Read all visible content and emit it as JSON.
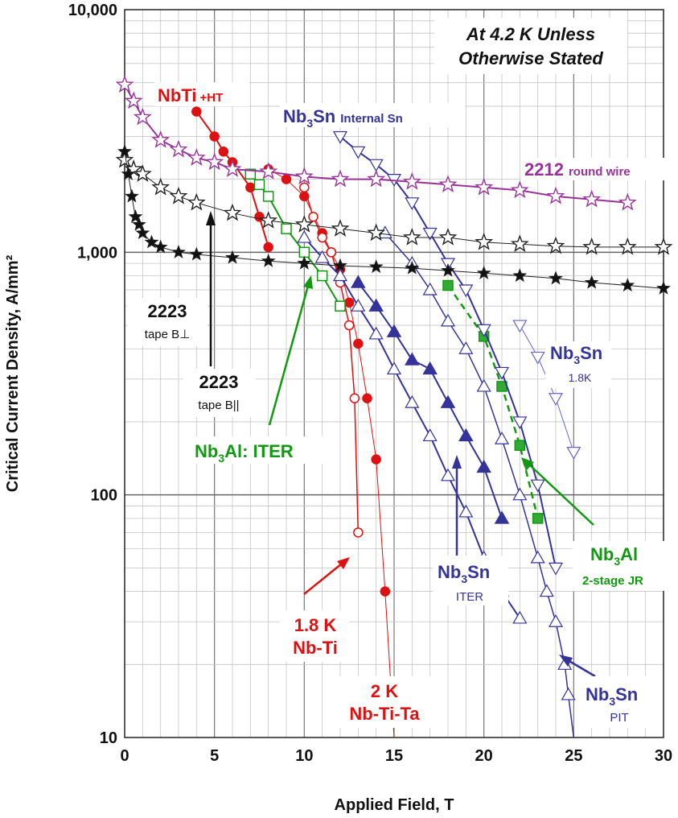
{
  "chart_data": {
    "type": "line",
    "title_line1": "At 4.2 K Unless",
    "title_line2": "Otherwise Stated",
    "xlabel": "Applied Field, T",
    "ylabel": "Critical Current Density, A/mm²",
    "xlim": [
      0,
      30
    ],
    "ylim": [
      10,
      10000
    ],
    "yscale": "log",
    "grid": true,
    "x_ticks": [
      {
        "v": 0,
        "label": "0"
      },
      {
        "v": 5,
        "label": "5"
      },
      {
        "v": 10,
        "label": "10"
      },
      {
        "v": 15,
        "label": "15"
      },
      {
        "v": 20,
        "label": "20"
      },
      {
        "v": 25,
        "label": "25"
      },
      {
        "v": 30,
        "label": "30"
      }
    ],
    "y_ticks": [
      {
        "v": 10,
        "label": "10"
      },
      {
        "v": 100,
        "label": "100"
      },
      {
        "v": 1000,
        "label": "1,000"
      },
      {
        "v": 10000,
        "label": "10,000"
      }
    ],
    "series": [
      {
        "name": "NbTi +HT",
        "color": "#dd1111",
        "marker": "circle",
        "fill": "#dd1111",
        "width": 2,
        "dash": "",
        "points": [
          [
            4,
            3800
          ],
          [
            5,
            3000
          ],
          [
            5.5,
            2600
          ],
          [
            6,
            2350
          ],
          [
            7,
            1850
          ],
          [
            7.5,
            1400
          ],
          [
            8,
            1050
          ]
        ]
      },
      {
        "name": "2 K Nb-Ti-Ta",
        "color": "#dd1111",
        "marker": "circle",
        "fill": "#dd1111",
        "width": 1,
        "dash": "",
        "points": [
          [
            8,
            2200
          ],
          [
            9,
            2000
          ],
          [
            10,
            1700
          ],
          [
            11,
            1200
          ],
          [
            11.5,
            1000
          ],
          [
            12,
            850
          ],
          [
            12.5,
            620
          ],
          [
            13,
            420
          ],
          [
            13.5,
            250
          ],
          [
            14,
            140
          ],
          [
            14.5,
            40
          ],
          [
            15,
            10
          ]
        ]
      },
      {
        "name": "1.8 K Nb-Ti",
        "color": "#dd1111",
        "marker": "circle",
        "fill": "#ffffff",
        "width": 1.5,
        "dash": "",
        "points": [
          [
            10,
            1850
          ],
          [
            10.5,
            1400
          ],
          [
            11,
            1150
          ],
          [
            11.5,
            1000
          ],
          [
            12,
            750
          ],
          [
            12.5,
            500
          ],
          [
            12.8,
            250
          ],
          [
            13,
            70
          ]
        ]
      },
      {
        "name": "Nb3Al: ITER",
        "color": "#119911",
        "marker": "square",
        "fill": "#ffffff",
        "width": 2,
        "dash": "",
        "points": [
          [
            7,
            2100
          ],
          [
            7.5,
            1900
          ],
          [
            8,
            1700
          ],
          [
            9,
            1250
          ],
          [
            10,
            1000
          ],
          [
            11,
            800
          ],
          [
            12,
            600
          ]
        ]
      },
      {
        "name": "Nb3Al 2-stage JR",
        "color": "#119911",
        "marker": "square",
        "fill": "#33aa33",
        "width": 2.5,
        "dash": "8,6",
        "points": [
          [
            18,
            730
          ],
          [
            20,
            450
          ],
          [
            21,
            280
          ],
          [
            22,
            160
          ],
          [
            23,
            80
          ]
        ]
      },
      {
        "name": "Nb3Sn Internal Sn",
        "color": "#333399",
        "marker": "triangle-down",
        "fill": "#ffffff",
        "width": 2,
        "dash": "",
        "points": [
          [
            12,
            3000
          ],
          [
            13,
            2600
          ],
          [
            14,
            2300
          ],
          [
            15,
            2000
          ],
          [
            16,
            1600
          ],
          [
            17,
            1200
          ],
          [
            18,
            900
          ],
          [
            19,
            700
          ],
          [
            20,
            480
          ],
          [
            21,
            320
          ],
          [
            22,
            200
          ],
          [
            23,
            110
          ],
          [
            24,
            50
          ]
        ]
      },
      {
        "name": "Nb3Sn ITER",
        "color": "#333399",
        "marker": "triangle",
        "fill": "#ffffff",
        "width": 2,
        "dash": "",
        "points": [
          [
            10,
            1150
          ],
          [
            11,
            950
          ],
          [
            12,
            800
          ],
          [
            13,
            600
          ],
          [
            14,
            460
          ],
          [
            15,
            330
          ],
          [
            16,
            240
          ],
          [
            17,
            175
          ],
          [
            18,
            120
          ],
          [
            19,
            85
          ],
          [
            20,
            55
          ],
          [
            21,
            40
          ],
          [
            22,
            31
          ]
        ]
      },
      {
        "name": "Nb3Sn ITER",
        "color": "#333399",
        "marker": "triangle-filled",
        "fill": "#333399",
        "width": 2,
        "dash": "",
        "points": [
          [
            13,
            750
          ],
          [
            14,
            600
          ],
          [
            15,
            470
          ],
          [
            16,
            360
          ],
          [
            17,
            330
          ],
          [
            18,
            240
          ],
          [
            19,
            175
          ],
          [
            20,
            130
          ],
          [
            21,
            80
          ]
        ]
      },
      {
        "name": "Nb3Sn PIT",
        "color": "#333399",
        "marker": "triangle",
        "fill": "#ffffff",
        "width": 1.5,
        "dash": "",
        "points": [
          [
            14.5,
            1200
          ],
          [
            16,
            900
          ],
          [
            17,
            700
          ],
          [
            18,
            520
          ],
          [
            19,
            400
          ],
          [
            20,
            280
          ],
          [
            21,
            170
          ],
          [
            22,
            100
          ],
          [
            23,
            55
          ],
          [
            23.5,
            40
          ],
          [
            24,
            30
          ],
          [
            24.5,
            20
          ],
          [
            24.7,
            15
          ],
          [
            25,
            10
          ]
        ]
      },
      {
        "name": "Nb3Sn 1.8K",
        "color": "#6666cc",
        "marker": "triangle-down",
        "fill": "#ffffff",
        "width": 1,
        "dash": "",
        "points": [
          [
            22,
            500
          ],
          [
            23,
            370
          ],
          [
            24,
            250
          ],
          [
            25,
            150
          ]
        ]
      },
      {
        "name": "2212 round wire",
        "color": "#993399",
        "marker": "star",
        "fill": "#ffffff",
        "width": 2,
        "dash": "",
        "points": [
          [
            0,
            4900
          ],
          [
            0.5,
            4200
          ],
          [
            1,
            3600
          ],
          [
            2,
            2900
          ],
          [
            3,
            2650
          ],
          [
            4,
            2450
          ],
          [
            5,
            2350
          ],
          [
            6,
            2200
          ],
          [
            8,
            2150
          ],
          [
            10,
            2050
          ],
          [
            12,
            2000
          ],
          [
            14,
            2000
          ],
          [
            16,
            1950
          ],
          [
            18,
            1900
          ],
          [
            20,
            1850
          ],
          [
            22,
            1800
          ],
          [
            24,
            1700
          ],
          [
            26,
            1650
          ],
          [
            28,
            1600
          ]
        ]
      },
      {
        "name": "2223 tape B||",
        "color": "#222222",
        "marker": "star",
        "fill": "#ffffff",
        "width": 1,
        "dash": "",
        "points": [
          [
            0,
            2400
          ],
          [
            0.5,
            2200
          ],
          [
            1,
            2100
          ],
          [
            2,
            1850
          ],
          [
            3,
            1700
          ],
          [
            4,
            1600
          ],
          [
            6,
            1450
          ],
          [
            8,
            1350
          ],
          [
            10,
            1300
          ],
          [
            12,
            1250
          ],
          [
            14,
            1200
          ],
          [
            16,
            1150
          ],
          [
            18,
            1150
          ],
          [
            20,
            1100
          ],
          [
            22,
            1080
          ],
          [
            24,
            1060
          ],
          [
            26,
            1050
          ],
          [
            28,
            1050
          ],
          [
            30,
            1050
          ]
        ]
      },
      {
        "name": "2223 tape B⊥",
        "color": "#222222",
        "marker": "star-filled",
        "fill": "#111111",
        "width": 1,
        "dash": "",
        "points": [
          [
            0,
            2600
          ],
          [
            0.2,
            2100
          ],
          [
            0.4,
            1700
          ],
          [
            0.6,
            1400
          ],
          [
            0.8,
            1300
          ],
          [
            1,
            1200
          ],
          [
            1.5,
            1100
          ],
          [
            2,
            1050
          ],
          [
            3,
            1000
          ],
          [
            4,
            980
          ],
          [
            6,
            950
          ],
          [
            8,
            920
          ],
          [
            10,
            900
          ],
          [
            12,
            880
          ],
          [
            14,
            870
          ],
          [
            16,
            860
          ],
          [
            18,
            840
          ],
          [
            20,
            820
          ],
          [
            22,
            800
          ],
          [
            24,
            780
          ],
          [
            26,
            750
          ],
          [
            28,
            730
          ],
          [
            30,
            710
          ]
        ]
      }
    ],
    "labels": {
      "nbti_ht_main": "NbTi",
      "nbti_ht_sub": "+HT",
      "nb3sn_internal_main": "Nb",
      "nb3sn_internal_sub3": "3",
      "nb3sn_internal_sn": "Sn",
      "nb3sn_internal_note": "Internal Sn",
      "bscco2212_main": "2212",
      "bscco2212_note": "round wire",
      "tape_perp_num": "2223",
      "tape_perp_note": "tape B⊥",
      "tape_par_num": "2223",
      "tape_par_note": "tape B||",
      "nb3al_iter": "Nb",
      "nb3al_iter_sub": "3",
      "nb3al_iter_rest": "Al: ITER",
      "nb3sn_18k_main": "Nb",
      "nb3sn_18k_sub": "3",
      "nb3sn_18k_sn": "Sn",
      "nb3sn_18k_note": "1.8K",
      "nb3al_jr_main": "Nb",
      "nb3al_jr_sub": "3",
      "nb3al_jr_al": "Al",
      "nb3al_jr_note": "2-stage JR",
      "nb3sn_iter_main": "Nb",
      "nb3sn_iter_sub": "3",
      "nb3sn_iter_sn": "Sn",
      "nb3sn_iter_note": "ITER",
      "nb3sn_pit_main": "Nb",
      "nb3sn_pit_sub": "3",
      "nb3sn_pit_sn": "Sn",
      "nb3sn_pit_note": "PIT",
      "nbti18_line1": "1.8 K",
      "nbti18_line2": "Nb-Ti",
      "nbtita_line1": "2 K",
      "nbtita_line2": "Nb-Ti-Ta"
    }
  }
}
